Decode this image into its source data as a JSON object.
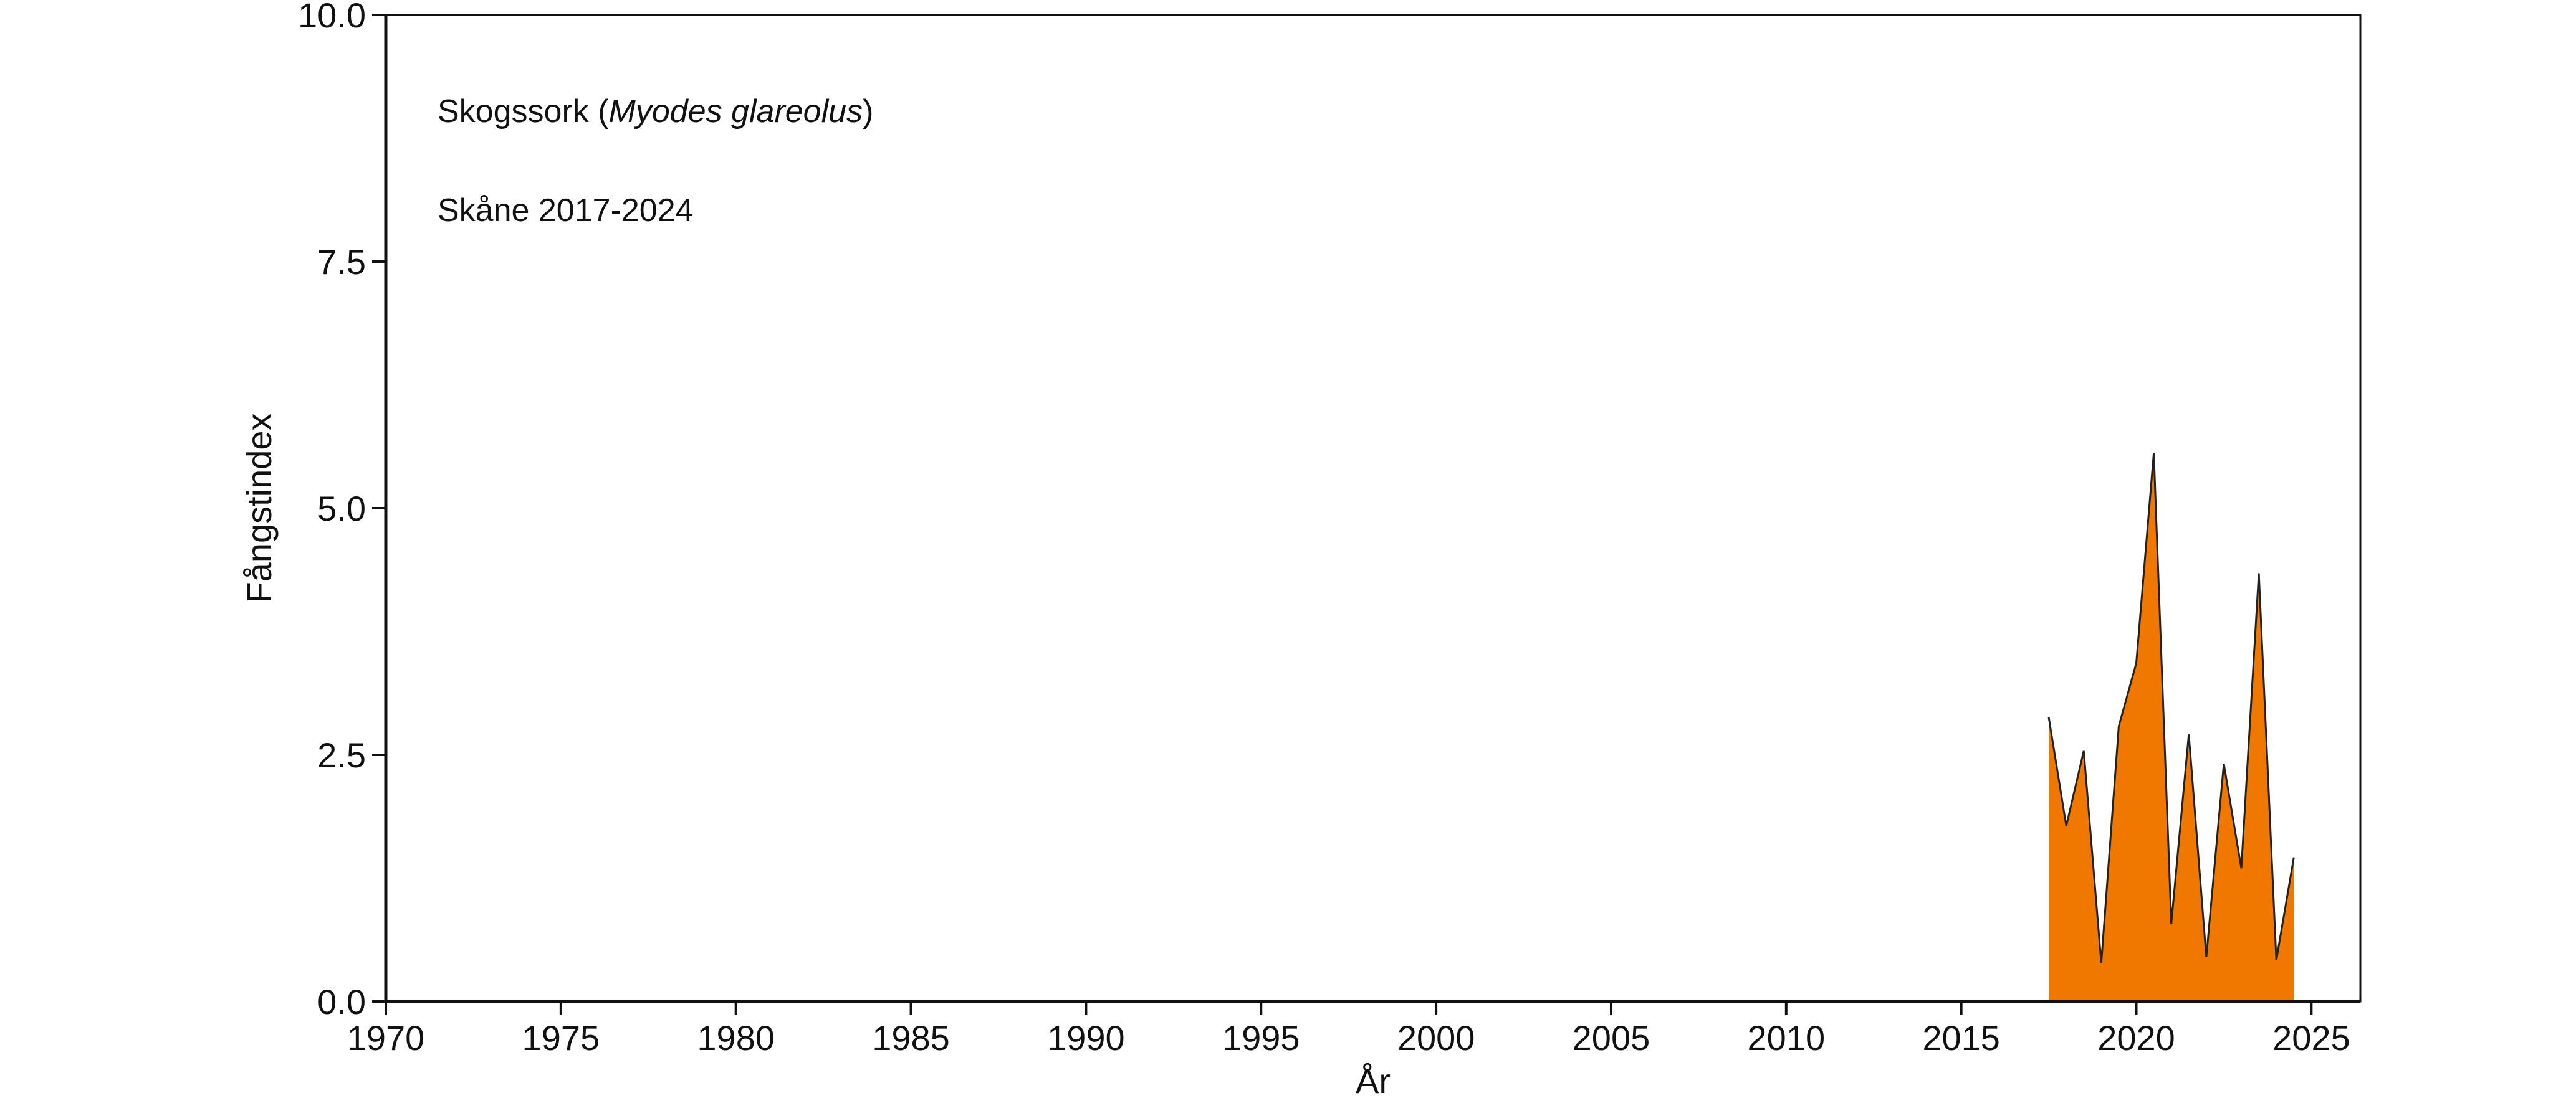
{
  "chart_data": {
    "type": "area",
    "title_parts": [
      "Skogssork (",
      "Myodes glareolus",
      ")"
    ],
    "subtitle": "Skåne 2017-2024",
    "xlabel": "År",
    "ylabel": "Fångstindex",
    "x": [
      2017.5,
      2018,
      2018.5,
      2019,
      2019.5,
      2020,
      2020.5,
      2021,
      2021.5,
      2022,
      2022.5,
      2023,
      2023.5,
      2024,
      2024.5
    ],
    "series": [
      {
        "name": "Skogssork",
        "color": "#f07800",
        "values": [
          2.88,
          1.78,
          2.54,
          0.39,
          2.79,
          3.43,
          5.56,
          0.79,
          2.71,
          0.45,
          2.41,
          1.35,
          4.34,
          0.42,
          1.46
        ]
      }
    ],
    "xlim": [
      1970,
      2026.4
    ],
    "ylim": [
      0,
      10
    ],
    "xticks": [
      1970,
      1975,
      1980,
      1985,
      1990,
      1995,
      2000,
      2005,
      2010,
      2015,
      2020,
      2025
    ],
    "yticks": [
      {
        "value": 0,
        "label": "0.0"
      },
      {
        "value": 2.5,
        "label": "2.5"
      },
      {
        "value": 5,
        "label": "5.0"
      },
      {
        "value": 7.5,
        "label": "7.5"
      },
      {
        "value": 10,
        "label": "10.0"
      }
    ]
  }
}
